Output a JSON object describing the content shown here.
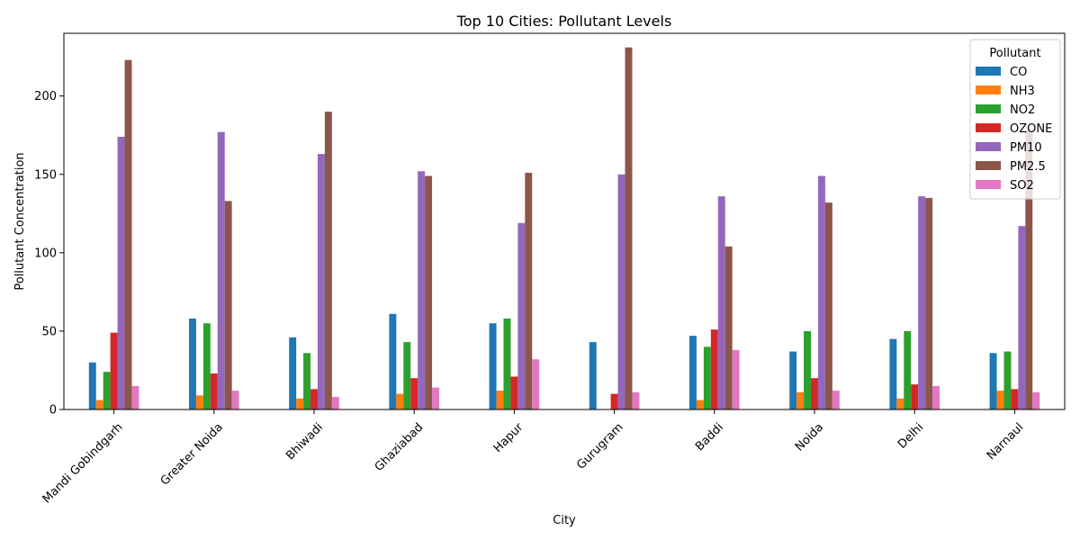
{
  "chart_data": {
    "type": "bar",
    "title": "Top 10 Cities: Pollutant Levels",
    "xlabel": "City",
    "ylabel": "Pollutant Concentration",
    "ylim": [
      0,
      240
    ],
    "yticks": [
      0,
      50,
      100,
      150,
      200
    ],
    "grid": false,
    "legend": {
      "title": "Pollutant",
      "placement": "top-right"
    },
    "categories": [
      "Mandi Gobindgarh",
      "Greater Noida",
      "Bhiwadi",
      "Ghaziabad",
      "Hapur",
      "Gurugram",
      "Baddi",
      "Noida",
      "Delhi",
      "Narnaul"
    ],
    "series": [
      {
        "name": "CO",
        "color": "#1f77b4",
        "values": [
          30,
          58,
          46,
          61,
          55,
          43,
          47,
          37,
          45,
          36
        ]
      },
      {
        "name": "NH3",
        "color": "#ff7f0e",
        "values": [
          6,
          9,
          7,
          10,
          12,
          0,
          6,
          11,
          7,
          12
        ]
      },
      {
        "name": "NO2",
        "color": "#2ca02c",
        "values": [
          24,
          55,
          36,
          43,
          58,
          0,
          40,
          50,
          50,
          37
        ]
      },
      {
        "name": "OZONE",
        "color": "#d62728",
        "values": [
          49,
          23,
          13,
          20,
          21,
          10,
          51,
          20,
          16,
          13
        ]
      },
      {
        "name": "PM10",
        "color": "#9467bd",
        "values": [
          174,
          177,
          163,
          152,
          119,
          150,
          136,
          149,
          136,
          117
        ]
      },
      {
        "name": "PM2.5",
        "color": "#8c564b",
        "values": [
          223,
          133,
          190,
          149,
          151,
          231,
          104,
          132,
          135,
          178
        ]
      },
      {
        "name": "SO2",
        "color": "#e377c2",
        "values": [
          15,
          12,
          8,
          14,
          32,
          11,
          38,
          12,
          15,
          11
        ]
      }
    ]
  }
}
